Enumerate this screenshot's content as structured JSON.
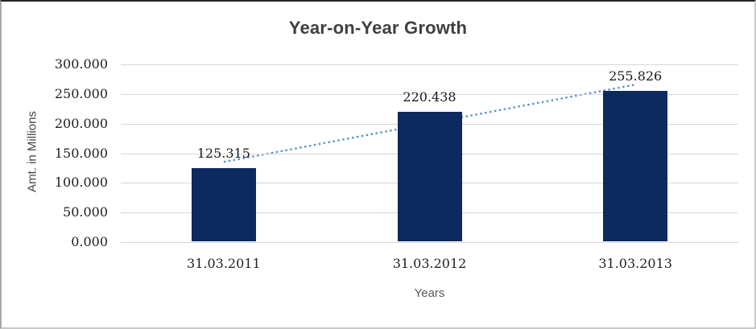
{
  "chart_data": {
    "type": "bar",
    "title": "Year-on-Year Growth",
    "xlabel": "Years",
    "ylabel": "Amt. in Millions",
    "categories": [
      "31.03.2011",
      "31.03.2012",
      "31.03.2013"
    ],
    "values": [
      125.315,
      220.438,
      255.826
    ],
    "data_labels": [
      "125.315",
      "220.438",
      "255.826"
    ],
    "ylim": [
      0,
      300
    ],
    "ytick_step": 50,
    "ytick_labels": [
      "0.000",
      "50.000",
      "100.000",
      "150.000",
      "200.000",
      "250.000",
      "300.000"
    ],
    "grid": true,
    "legend": "none",
    "trendline": {
      "style": "dotted",
      "color": "#5a8ed0"
    },
    "colors": {
      "bar": "#0d2a60",
      "gridline": "#d6d6d6",
      "title_text": "#3f3f3f",
      "tick_text": "#1f1f1f",
      "axis_title_text": "#595959"
    }
  }
}
